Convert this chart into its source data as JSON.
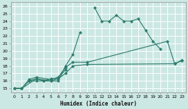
{
  "xlabel": "Humidex (Indice chaleur)",
  "bg_color": "#cce8e4",
  "grid_color": "#ffffff",
  "line_color": "#2e7d6e",
  "xlim": [
    -0.5,
    23.5
  ],
  "ylim": [
    14.5,
    26.5
  ],
  "xticks": [
    0,
    1,
    2,
    3,
    4,
    5,
    6,
    7,
    8,
    9,
    10,
    11,
    12,
    13,
    14,
    15,
    16,
    17,
    18,
    19,
    20,
    21,
    22,
    23
  ],
  "yticks": [
    15,
    16,
    17,
    18,
    19,
    20,
    21,
    22,
    23,
    24,
    25,
    26
  ],
  "series": [
    {
      "segments": [
        {
          "x": [
            0,
            1,
            2,
            3,
            4,
            5,
            6,
            7,
            8,
            9
          ],
          "y": [
            15,
            15,
            16,
            16,
            16,
            16,
            16,
            18,
            19.5,
            22.5
          ]
        },
        {
          "x": [
            11,
            12,
            13,
            14,
            15,
            16,
            17,
            18,
            19,
            20
          ],
          "y": [
            25.8,
            24,
            24,
            24.8,
            24,
            24,
            24.3,
            22.8,
            21.3,
            20.3
          ]
        },
        {
          "x": [
            22
          ],
          "y": [
            18.3
          ]
        }
      ]
    },
    {
      "segments": [
        {
          "x": [
            0,
            1,
            2,
            3,
            5,
            6,
            7,
            8,
            10,
            21,
            22,
            23
          ],
          "y": [
            15,
            15,
            16.2,
            16.5,
            16.2,
            16.5,
            17.8,
            18.5,
            18.5,
            21.3,
            18.3,
            18.8
          ]
        }
      ]
    },
    {
      "segments": [
        {
          "x": [
            0,
            1,
            3,
            5,
            6,
            7,
            8,
            10,
            22,
            23
          ],
          "y": [
            15,
            15,
            16.3,
            16.0,
            16.3,
            17.0,
            18.0,
            18.2,
            18.3,
            18.7
          ]
        }
      ]
    },
    {
      "segments": [
        {
          "x": [
            2,
            3,
            4,
            5,
            6,
            7
          ],
          "y": [
            16,
            16.3,
            16,
            16.3,
            16.3,
            17.5
          ]
        }
      ]
    }
  ]
}
